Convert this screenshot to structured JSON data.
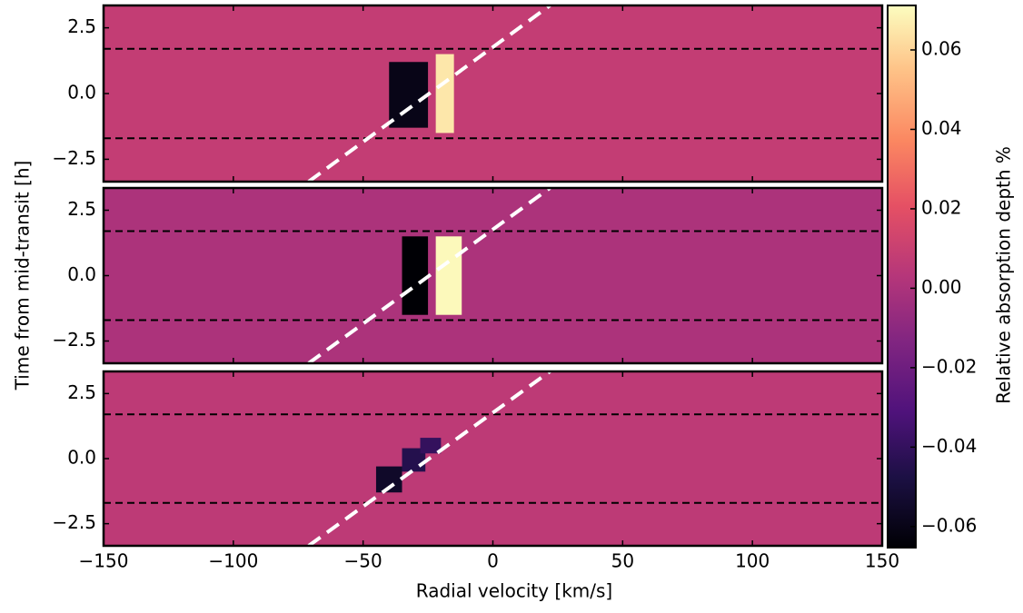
{
  "chart_data": {
    "type": "heatmap",
    "xlabel": "Radial velocity [km/s]",
    "ylabel": "Time from mid-transit [h]",
    "colorbar_label": "Relative absorption depth %",
    "colormap": "magma",
    "xlim": [
      -150,
      150
    ],
    "xticks": [
      {
        "value": -150,
        "label": "−150"
      },
      {
        "value": -100,
        "label": "−100"
      },
      {
        "value": -50,
        "label": "−50"
      },
      0,
      50,
      100,
      150
    ],
    "ylim": [
      -3.35,
      3.35
    ],
    "yticks": [
      {
        "value": -2.5,
        "label": "−2.5"
      },
      {
        "value": 0,
        "label": "0.0"
      },
      {
        "value": 2.5,
        "label": "2.5"
      }
    ],
    "clim": [
      -0.0653,
      0.0712
    ],
    "cticks": [
      {
        "value": -0.06,
        "label": "−0.06"
      },
      {
        "value": -0.04,
        "label": "−0.04"
      },
      {
        "value": -0.02,
        "label": "−0.02"
      },
      {
        "value": 0,
        "label": "0.00"
      },
      {
        "value": 0.02,
        "label": "0.02"
      },
      {
        "value": 0.04,
        "label": "0.04"
      },
      {
        "value": 0.06,
        "label": "0.06"
      }
    ],
    "transit_limits": [
      -1.7,
      1.7
    ],
    "trajectory": {
      "x": [
        -71,
        22
      ],
      "y": [
        -3.35,
        3.35
      ]
    },
    "panels": [
      {
        "background": 0.008,
        "cells": [
          {
            "x": [
              -40,
              -25
            ],
            "y": [
              -1.3,
              1.2
            ],
            "value": -0.06
          },
          {
            "x": [
              -22,
              -15
            ],
            "y": [
              -1.5,
              1.5
            ],
            "value": 0.065
          }
        ]
      },
      {
        "background": 0.0,
        "cells": [
          {
            "x": [
              -35,
              -25
            ],
            "y": [
              -1.5,
              1.5
            ],
            "value": -0.065
          },
          {
            "x": [
              -22,
              -12
            ],
            "y": [
              -1.5,
              1.5
            ],
            "value": 0.07
          }
        ]
      },
      {
        "background": 0.006,
        "cells": [
          {
            "x": [
              -45,
              -35
            ],
            "y": [
              -1.3,
              -0.3
            ],
            "value": -0.055
          },
          {
            "x": [
              -35,
              -26
            ],
            "y": [
              -0.5,
              0.4
            ],
            "value": -0.045
          },
          {
            "x": [
              -28,
              -20
            ],
            "y": [
              0.2,
              0.8
            ],
            "value": -0.04
          }
        ]
      }
    ]
  }
}
